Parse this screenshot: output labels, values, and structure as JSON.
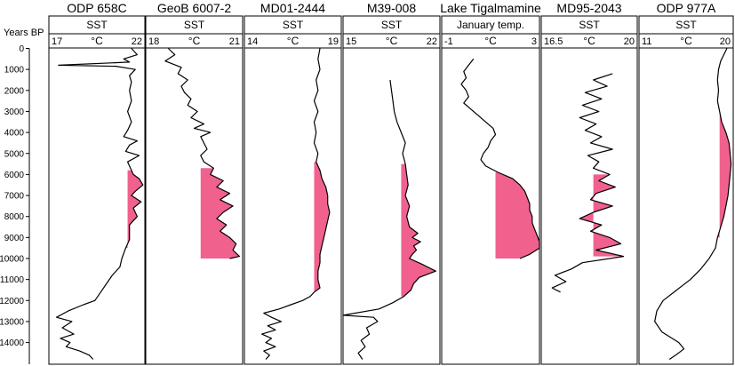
{
  "chart_data": {
    "type": "line",
    "y_axis": {
      "label": "Years BP",
      "ticks": [
        0,
        1000,
        2000,
        3000,
        4000,
        5000,
        6000,
        7000,
        8000,
        9000,
        10000,
        11000,
        12000,
        13000,
        14000
      ],
      "range": [
        0,
        14800
      ],
      "reversed": true
    },
    "highlight_color": "#f0618e",
    "line_color": "#000000",
    "panels": [
      {
        "title": "ODP 658C",
        "box_label": "SST",
        "unit": "°C",
        "x_ticks": [
          "17",
          "22"
        ],
        "xlim": [
          17,
          22
        ],
        "series": [
          [
            0,
            21.3
          ],
          [
            300,
            21.6
          ],
          [
            500,
            20.9
          ],
          [
            650,
            21.2
          ],
          [
            800,
            17.5
          ],
          [
            850,
            20.5
          ],
          [
            1000,
            21.5
          ],
          [
            1300,
            21.2
          ],
          [
            1600,
            21.3
          ],
          [
            2000,
            21.2
          ],
          [
            2500,
            21.3
          ],
          [
            3000,
            21.1
          ],
          [
            3500,
            21.3
          ],
          [
            3900,
            21.1
          ],
          [
            4200,
            20.9
          ],
          [
            4400,
            21.6
          ],
          [
            4600,
            21.2
          ],
          [
            4900,
            21.0
          ],
          [
            5100,
            21.7
          ],
          [
            5400,
            21.1
          ],
          [
            5800,
            21.3
          ],
          [
            6000,
            21.4
          ],
          [
            6200,
            21.7
          ],
          [
            6500,
            21.9
          ],
          [
            6800,
            21.5
          ],
          [
            7000,
            21.3
          ],
          [
            7300,
            21.8
          ],
          [
            7600,
            21.4
          ],
          [
            8000,
            21.6
          ],
          [
            8400,
            21.2
          ],
          [
            8800,
            21.2
          ],
          [
            9100,
            21.2
          ],
          [
            9500,
            21.0
          ],
          [
            10000,
            20.8
          ],
          [
            10400,
            20.7
          ],
          [
            10800,
            20.3
          ],
          [
            11200,
            20.0
          ],
          [
            11600,
            19.7
          ],
          [
            12000,
            19.4
          ],
          [
            12200,
            18.8
          ],
          [
            12500,
            18.0
          ],
          [
            12800,
            17.4
          ],
          [
            13000,
            18.2
          ],
          [
            13300,
            17.7
          ],
          [
            13600,
            18.3
          ],
          [
            13800,
            17.6
          ],
          [
            14000,
            18.1
          ],
          [
            14200,
            17.9
          ],
          [
            14400,
            18.6
          ],
          [
            14600,
            19.1
          ],
          [
            14800,
            19.3
          ]
        ],
        "highlight": {
          "from": 5800,
          "to": 9800,
          "baseline": 21.1
        }
      },
      {
        "title": "GeoB 6007-2",
        "box_label": "SST",
        "unit": "°C",
        "x_ticks": [
          "18",
          "21"
        ],
        "xlim": [
          18,
          21
        ],
        "series": [
          [
            0,
            18.7
          ],
          [
            300,
            18.9
          ],
          [
            600,
            18.6
          ],
          [
            900,
            19.1
          ],
          [
            1200,
            19.0
          ],
          [
            1500,
            19.3
          ],
          [
            1800,
            19.1
          ],
          [
            2100,
            19.2
          ],
          [
            2400,
            19.4
          ],
          [
            2700,
            19.3
          ],
          [
            3000,
            19.6
          ],
          [
            3300,
            19.4
          ],
          [
            3600,
            19.8
          ],
          [
            3800,
            19.5
          ],
          [
            4000,
            20.0
          ],
          [
            4200,
            19.7
          ],
          [
            4500,
            19.8
          ],
          [
            4800,
            19.9
          ],
          [
            5100,
            19.7
          ],
          [
            5400,
            19.8
          ],
          [
            5700,
            20.1
          ],
          [
            6000,
            20.0
          ],
          [
            6300,
            20.4
          ],
          [
            6600,
            20.2
          ],
          [
            6900,
            20.6
          ],
          [
            7200,
            20.3
          ],
          [
            7500,
            20.7
          ],
          [
            7800,
            20.4
          ],
          [
            8100,
            20.2
          ],
          [
            8400,
            20.5
          ],
          [
            8700,
            20.3
          ],
          [
            9000,
            20.6
          ],
          [
            9300,
            20.8
          ],
          [
            9600,
            20.7
          ],
          [
            9900,
            20.9
          ],
          [
            10000,
            20.6
          ]
        ],
        "highlight": {
          "from": 5600,
          "to": 10000,
          "baseline": 19.7
        }
      },
      {
        "title": "MD01-2444",
        "box_label": "SST",
        "unit": "°C",
        "x_ticks": [
          "14",
          "19"
        ],
        "xlim": [
          14,
          19
        ],
        "series": [
          [
            0,
            17.9
          ],
          [
            500,
            17.8
          ],
          [
            1000,
            17.9
          ],
          [
            1500,
            17.7
          ],
          [
            2000,
            17.8
          ],
          [
            2500,
            17.6
          ],
          [
            3000,
            17.8
          ],
          [
            3500,
            17.6
          ],
          [
            4000,
            17.7
          ],
          [
            4500,
            17.6
          ],
          [
            5000,
            17.8
          ],
          [
            5400,
            17.7
          ],
          [
            5800,
            17.9
          ],
          [
            6200,
            18.0
          ],
          [
            6600,
            18.2
          ],
          [
            7000,
            18.3
          ],
          [
            7400,
            18.3
          ],
          [
            7800,
            18.4
          ],
          [
            8200,
            18.3
          ],
          [
            8600,
            18.2
          ],
          [
            9000,
            18.1
          ],
          [
            9400,
            18.0
          ],
          [
            9800,
            17.9
          ],
          [
            10200,
            17.9
          ],
          [
            10600,
            17.8
          ],
          [
            11000,
            17.8
          ],
          [
            11400,
            17.9
          ],
          [
            11600,
            17.6
          ],
          [
            11800,
            17.4
          ],
          [
            12000,
            17.0
          ],
          [
            12200,
            16.4
          ],
          [
            12400,
            15.8
          ],
          [
            12600,
            15.0
          ],
          [
            12800,
            15.4
          ],
          [
            13000,
            15.9
          ],
          [
            13200,
            15.2
          ],
          [
            13400,
            15.6
          ],
          [
            13600,
            14.9
          ],
          [
            13800,
            15.4
          ],
          [
            14000,
            15.1
          ],
          [
            14200,
            15.6
          ],
          [
            14400,
            15.0
          ],
          [
            14600,
            15.3
          ],
          [
            14800,
            15.1
          ]
        ],
        "highlight": {
          "from": 5300,
          "to": 11700,
          "baseline": 17.6
        }
      },
      {
        "title": "M39-008",
        "box_label": "SST",
        "unit": "°C",
        "x_ticks": [
          "15",
          "22"
        ],
        "xlim": [
          15,
          22
        ],
        "series": [
          [
            1500,
            18.4
          ],
          [
            2000,
            18.5
          ],
          [
            2500,
            18.6
          ],
          [
            3000,
            18.7
          ],
          [
            3500,
            18.9
          ],
          [
            4000,
            19.2
          ],
          [
            4500,
            19.5
          ],
          [
            5000,
            19.3
          ],
          [
            5500,
            19.5
          ],
          [
            6000,
            19.6
          ],
          [
            6500,
            19.7
          ],
          [
            7000,
            19.5
          ],
          [
            7500,
            19.8
          ],
          [
            8000,
            19.6
          ],
          [
            8500,
            19.8
          ],
          [
            8800,
            20.4
          ],
          [
            9000,
            20.0
          ],
          [
            9200,
            20.6
          ],
          [
            9400,
            20.1
          ],
          [
            9600,
            20.3
          ],
          [
            9800,
            20.0
          ],
          [
            10000,
            19.8
          ],
          [
            10300,
            20.8
          ],
          [
            10600,
            21.7
          ],
          [
            10900,
            20.5
          ],
          [
            11200,
            20.1
          ],
          [
            11500,
            19.9
          ],
          [
            11800,
            19.4
          ],
          [
            12100,
            18.6
          ],
          [
            12400,
            17.6
          ],
          [
            12700,
            15.0
          ],
          [
            12800,
            17.2
          ],
          [
            13000,
            17.5
          ],
          [
            13300,
            16.7
          ],
          [
            13600,
            16.9
          ],
          [
            13900,
            16.3
          ],
          [
            14200,
            16.6
          ],
          [
            14500,
            16.1
          ],
          [
            14800,
            16.4
          ]
        ],
        "highlight": {
          "from": 5300,
          "to": 11800,
          "baseline": 19.2
        }
      },
      {
        "title": "Lake Tigalmamine",
        "box_label": "January temp.",
        "unit": "°C",
        "x_ticks": [
          "-1",
          "3"
        ],
        "xlim": [
          -1,
          3
        ],
        "series": [
          [
            500,
            0.3
          ],
          [
            800,
            0.1
          ],
          [
            1100,
            -0.1
          ],
          [
            1400,
            0.0
          ],
          [
            1700,
            -0.2
          ],
          [
            2000,
            0.0
          ],
          [
            2300,
            0.1
          ],
          [
            2600,
            -0.1
          ],
          [
            2900,
            0.2
          ],
          [
            3200,
            0.5
          ],
          [
            3500,
            0.8
          ],
          [
            3800,
            1.1
          ],
          [
            4100,
            1.2
          ],
          [
            4400,
            1.0
          ],
          [
            4700,
            0.9
          ],
          [
            5000,
            0.7
          ],
          [
            5300,
            0.6
          ],
          [
            5600,
            0.8
          ],
          [
            5900,
            1.3
          ],
          [
            6200,
            1.9
          ],
          [
            6500,
            2.2
          ],
          [
            6800,
            2.4
          ],
          [
            7100,
            2.5
          ],
          [
            7400,
            2.6
          ],
          [
            7700,
            2.6
          ],
          [
            8000,
            2.7
          ],
          [
            8300,
            2.7
          ],
          [
            8600,
            2.8
          ],
          [
            8900,
            2.9
          ],
          [
            9200,
            3.0
          ],
          [
            9500,
            3.0
          ],
          [
            9800,
            2.6
          ],
          [
            10000,
            2.2
          ]
        ],
        "highlight": {
          "from": 5900,
          "to": 10000,
          "baseline": 1.2
        }
      },
      {
        "title": "MD95-2043",
        "box_label": "SST",
        "unit": "°C",
        "x_ticks": [
          "16.5",
          "20"
        ],
        "xlim": [
          16.5,
          20
        ],
        "series": [
          [
            1200,
            19.1
          ],
          [
            1500,
            18.4
          ],
          [
            1800,
            18.9
          ],
          [
            2100,
            18.1
          ],
          [
            2400,
            18.7
          ],
          [
            2700,
            18.0
          ],
          [
            3000,
            18.6
          ],
          [
            3300,
            17.9
          ],
          [
            3600,
            18.5
          ],
          [
            3900,
            18.1
          ],
          [
            4200,
            18.7
          ],
          [
            4500,
            18.3
          ],
          [
            4800,
            19.1
          ],
          [
            5100,
            18.2
          ],
          [
            5400,
            18.6
          ],
          [
            5700,
            18.4
          ],
          [
            6000,
            19.0
          ],
          [
            6300,
            18.6
          ],
          [
            6600,
            19.2
          ],
          [
            6900,
            18.5
          ],
          [
            7200,
            18.3
          ],
          [
            7500,
            19.1
          ],
          [
            7800,
            18.4
          ],
          [
            8100,
            17.9
          ],
          [
            8400,
            18.7
          ],
          [
            8700,
            18.3
          ],
          [
            9000,
            19.0
          ],
          [
            9300,
            19.4
          ],
          [
            9600,
            18.5
          ],
          [
            9900,
            19.5
          ],
          [
            10200,
            18.0
          ],
          [
            10500,
            17.6
          ],
          [
            10800,
            17.0
          ],
          [
            11100,
            17.4
          ],
          [
            11400,
            16.9
          ],
          [
            11600,
            17.2
          ]
        ],
        "highlight": {
          "from": 5900,
          "to": 10000,
          "baseline": 18.4
        }
      },
      {
        "title": "ODP 977A",
        "box_label": "SST",
        "unit": "°C",
        "x_ticks": [
          "11",
          "20"
        ],
        "xlim": [
          11,
          20
        ],
        "series": [
          [
            0,
            19.4
          ],
          [
            300,
            19.1
          ],
          [
            600,
            18.8
          ],
          [
            1000,
            18.6
          ],
          [
            1500,
            18.5
          ],
          [
            2000,
            18.6
          ],
          [
            2500,
            18.5
          ],
          [
            3000,
            18.7
          ],
          [
            3500,
            18.9
          ],
          [
            4000,
            19.3
          ],
          [
            4500,
            19.6
          ],
          [
            5000,
            19.7
          ],
          [
            5500,
            19.8
          ],
          [
            6000,
            19.7
          ],
          [
            6500,
            19.6
          ],
          [
            7000,
            19.5
          ],
          [
            7500,
            19.3
          ],
          [
            8000,
            19.1
          ],
          [
            8500,
            18.8
          ],
          [
            9000,
            18.5
          ],
          [
            9500,
            18.3
          ],
          [
            10000,
            17.7
          ],
          [
            10500,
            16.9
          ],
          [
            11000,
            15.9
          ],
          [
            11500,
            14.6
          ],
          [
            12000,
            13.3
          ],
          [
            12500,
            12.7
          ],
          [
            13000,
            12.5
          ],
          [
            13500,
            13.2
          ],
          [
            14000,
            14.8
          ],
          [
            14300,
            15.3
          ],
          [
            14600,
            14.5
          ],
          [
            14800,
            13.9
          ]
        ],
        "highlight": {
          "from": 2900,
          "to": 9300,
          "baseline": 18.7
        }
      }
    ]
  }
}
